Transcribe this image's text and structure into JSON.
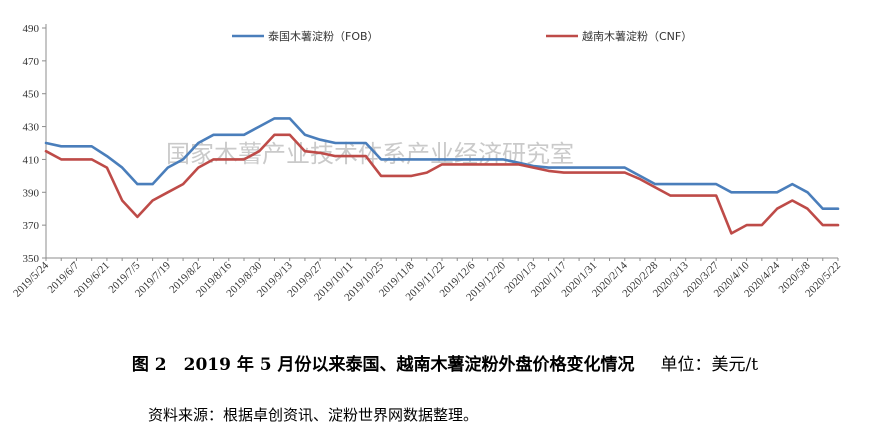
{
  "chart_data": {
    "type": "line",
    "title": "",
    "xlabel": "",
    "ylabel": "",
    "ylim": [
      350,
      490
    ],
    "yticks": [
      350,
      370,
      390,
      410,
      430,
      450,
      470,
      490
    ],
    "legend_position": "top",
    "grid": false,
    "watermark": "国家木薯产业技术体系产业经济研究室",
    "x": [
      "2019/5/24",
      "2019/5/31",
      "2019/6/7",
      "2019/6/14",
      "2019/6/21",
      "2019/6/28",
      "2019/7/5",
      "2019/7/12",
      "2019/7/19",
      "2019/7/26",
      "2019/8/2",
      "2019/8/9",
      "2019/8/16",
      "2019/8/23",
      "2019/8/30",
      "2019/9/6",
      "2019/9/13",
      "2019/9/20",
      "2019/9/27",
      "2019/10/4",
      "2019/10/11",
      "2019/10/18",
      "2019/10/25",
      "2019/11/1",
      "2019/11/8",
      "2019/11/15",
      "2019/11/22",
      "2019/11/29",
      "2019/12/6",
      "2019/12/13",
      "2019/12/20",
      "2019/12/27",
      "2020/1/3",
      "2020/1/10",
      "2020/1/17",
      "2020/1/24",
      "2020/1/31",
      "2020/2/7",
      "2020/2/14",
      "2020/2/21",
      "2020/2/28",
      "2020/3/6",
      "2020/3/13",
      "2020/3/20",
      "2020/3/27",
      "2020/4/3",
      "2020/4/10",
      "2020/4/17",
      "2020/4/24",
      "2020/5/1",
      "2020/5/8",
      "2020/5/15",
      "2020/5/22"
    ],
    "x_tick_labels": [
      "2019/5/24",
      "2019/6/7",
      "2019/6/21",
      "2019/7/5",
      "2019/7/19",
      "2019/8/2",
      "2019/8/16",
      "2019/8/30",
      "2019/9/13",
      "2019/9/27",
      "2019/10/11",
      "2019/10/25",
      "2019/11/8",
      "2019/11/22",
      "2019/12/6",
      "2019/12/20",
      "2020/1/3",
      "2020/1/17",
      "2020/1/31",
      "2020/2/14",
      "2020/2/28",
      "2020/3/13",
      "2020/3/27",
      "2020/4/10",
      "2020/4/24",
      "2020/5/8",
      "2020/5/22"
    ],
    "series": [
      {
        "name": "泰国木薯淀粉（FOB）",
        "color": "#4a7ebb",
        "values": [
          420,
          418,
          418,
          418,
          412,
          405,
          395,
          395,
          405,
          410,
          420,
          425,
          425,
          425,
          430,
          435,
          435,
          425,
          422,
          420,
          420,
          420,
          410,
          410,
          410,
          410,
          410,
          410,
          410,
          410,
          410,
          408,
          406,
          405,
          405,
          405,
          405,
          405,
          405,
          400,
          395,
          395,
          395,
          395,
          395,
          390,
          390,
          390,
          390,
          395,
          390,
          380,
          380
        ]
      },
      {
        "name": "越南木薯淀粉（CNF）",
        "color": "#be4b48",
        "values": [
          415,
          410,
          410,
          410,
          405,
          385,
          375,
          385,
          390,
          395,
          405,
          410,
          410,
          410,
          415,
          425,
          425,
          415,
          414,
          412,
          412,
          412,
          400,
          400,
          400,
          402,
          407,
          407,
          407,
          407,
          407,
          407,
          405,
          403,
          402,
          402,
          402,
          402,
          402,
          398,
          393,
          388,
          388,
          388,
          388,
          365,
          370,
          370,
          380,
          385,
          380,
          370,
          370
        ]
      }
    ]
  },
  "caption": {
    "figure_label": "图 2　2019 年 5 月份以来泰国、越南木薯淀粉外盘价格变化情况",
    "unit": "单位：美元/t"
  },
  "source_note": "资料来源：根据卓创资讯、淀粉世界网数据整理。"
}
